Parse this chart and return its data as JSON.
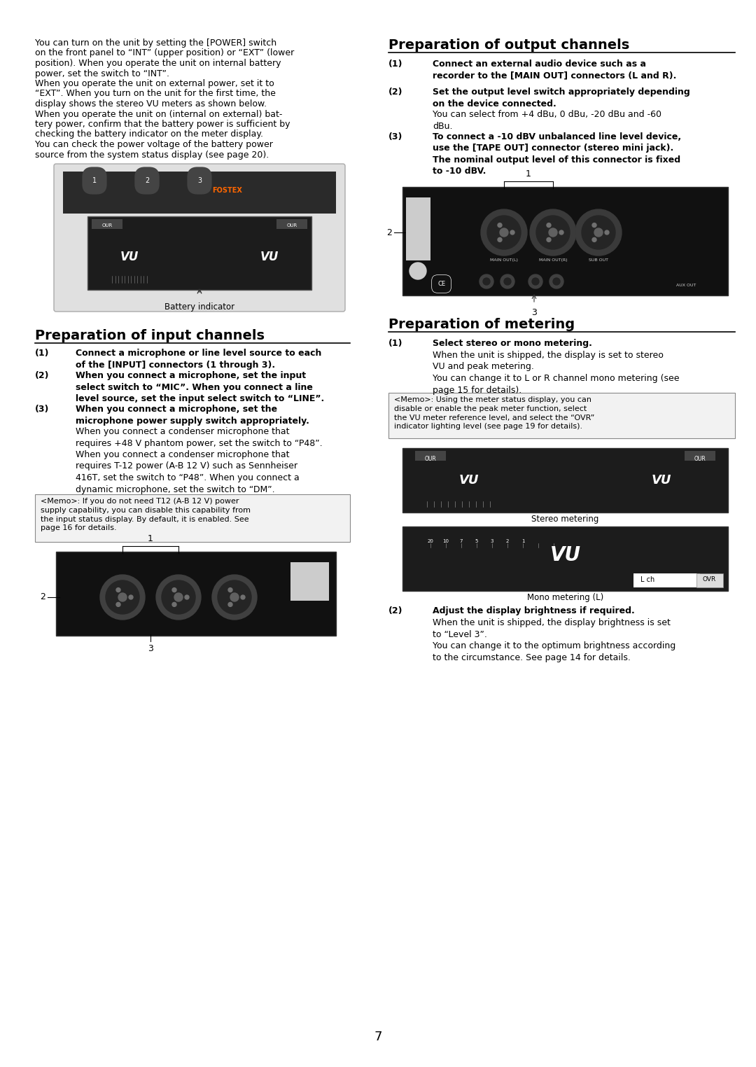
{
  "page_number": "7",
  "bg_color": "#ffffff",
  "intro_lines": [
    "You can turn on the unit by setting the [POWER] switch",
    "on the front panel to “INT” (upper position) or “EXT” (lower",
    "position). When you operate the unit on internal battery",
    "power, set the switch to “INT”.",
    "When you operate the unit on external power, set it to",
    "“EXT”. When you turn on the unit for the first time, the",
    "display shows the stereo VU meters as shown below.",
    "When you operate the unit on (internal on external) bat-",
    "tery power, confirm that the battery power is sufficient by",
    "checking the battery indicator on the meter display.",
    "You can check the power voltage of the battery power",
    "source from the system status display (see page 20)."
  ],
  "output_title": "Preparation of output channels",
  "output_1_bold": "Connect an external audio device such as a\nrecorder to the [MAIN OUT] connectors (L and R).",
  "output_2_bold": "Set the output level switch appropriately depending\non the device connected.",
  "output_2_normal": "You can select from +4 dBu, 0 dBu, -20 dBu and -60\ndBu.",
  "output_3_bold": "To connect a -10 dBV unbalanced line level device,\nuse the [TAPE OUT] connector (stereo mini jack).\nThe nominal output level of this connector is fixed\nto -10 dBV.",
  "input_title": "Preparation of input channels",
  "input_1_bold": "Connect a microphone or line level source to each\nof the [INPUT] connectors (1 through 3).",
  "input_2_bold": "When you connect a microphone, set the input\nselect switch to “MIC”. When you connect a line\nlevel source, set the input select switch to “LINE”.",
  "input_3_bold": "When you connect a microphone, set the\nmicrophone power supply switch appropriately.",
  "input_3_normal": "When you connect a condenser microphone that\nrequires +48 V phantom power, set the switch to “P48”.\nWhen you connect a condenser microphone that\nrequires T-12 power (A-B 12 V) such as Sennheiser\n416T, set the switch to “P48”. When you connect a\ndynamic microphone, set the switch to “DM”.",
  "input_memo": "<Memo>: If you do not need T12 (A-B 12 V) power\nsupply capability, you can disable this capability from\nthe input status display. By default, it is enabled. See\npage 16 for details.",
  "metering_title": "Preparation of metering",
  "metering_1_bold": "Select stereo or mono metering.",
  "metering_1_normal": "When the unit is shipped, the display is set to stereo\nVU and peak metering.\nYou can change it to L or R channel mono metering (see\npage 15 for details).",
  "metering_memo": "<Memo>: Using the meter status display, you can\ndisable or enable the peak meter function, select\nthe VU meter reference level, and select the “OVR”\nindicator lighting level (see page 19 for details).",
  "metering_2_bold": "Adjust the display brightness if required.",
  "metering_2_normal": "When the unit is shipped, the display brightness is set\nto “Level 3”.\nYou can change it to the optimum brightness according\nto the circumstance. See page 14 for details.",
  "battery_label": "Battery indicator",
  "stereo_label": "Stereo metering",
  "mono_label": "Mono metering (L)"
}
